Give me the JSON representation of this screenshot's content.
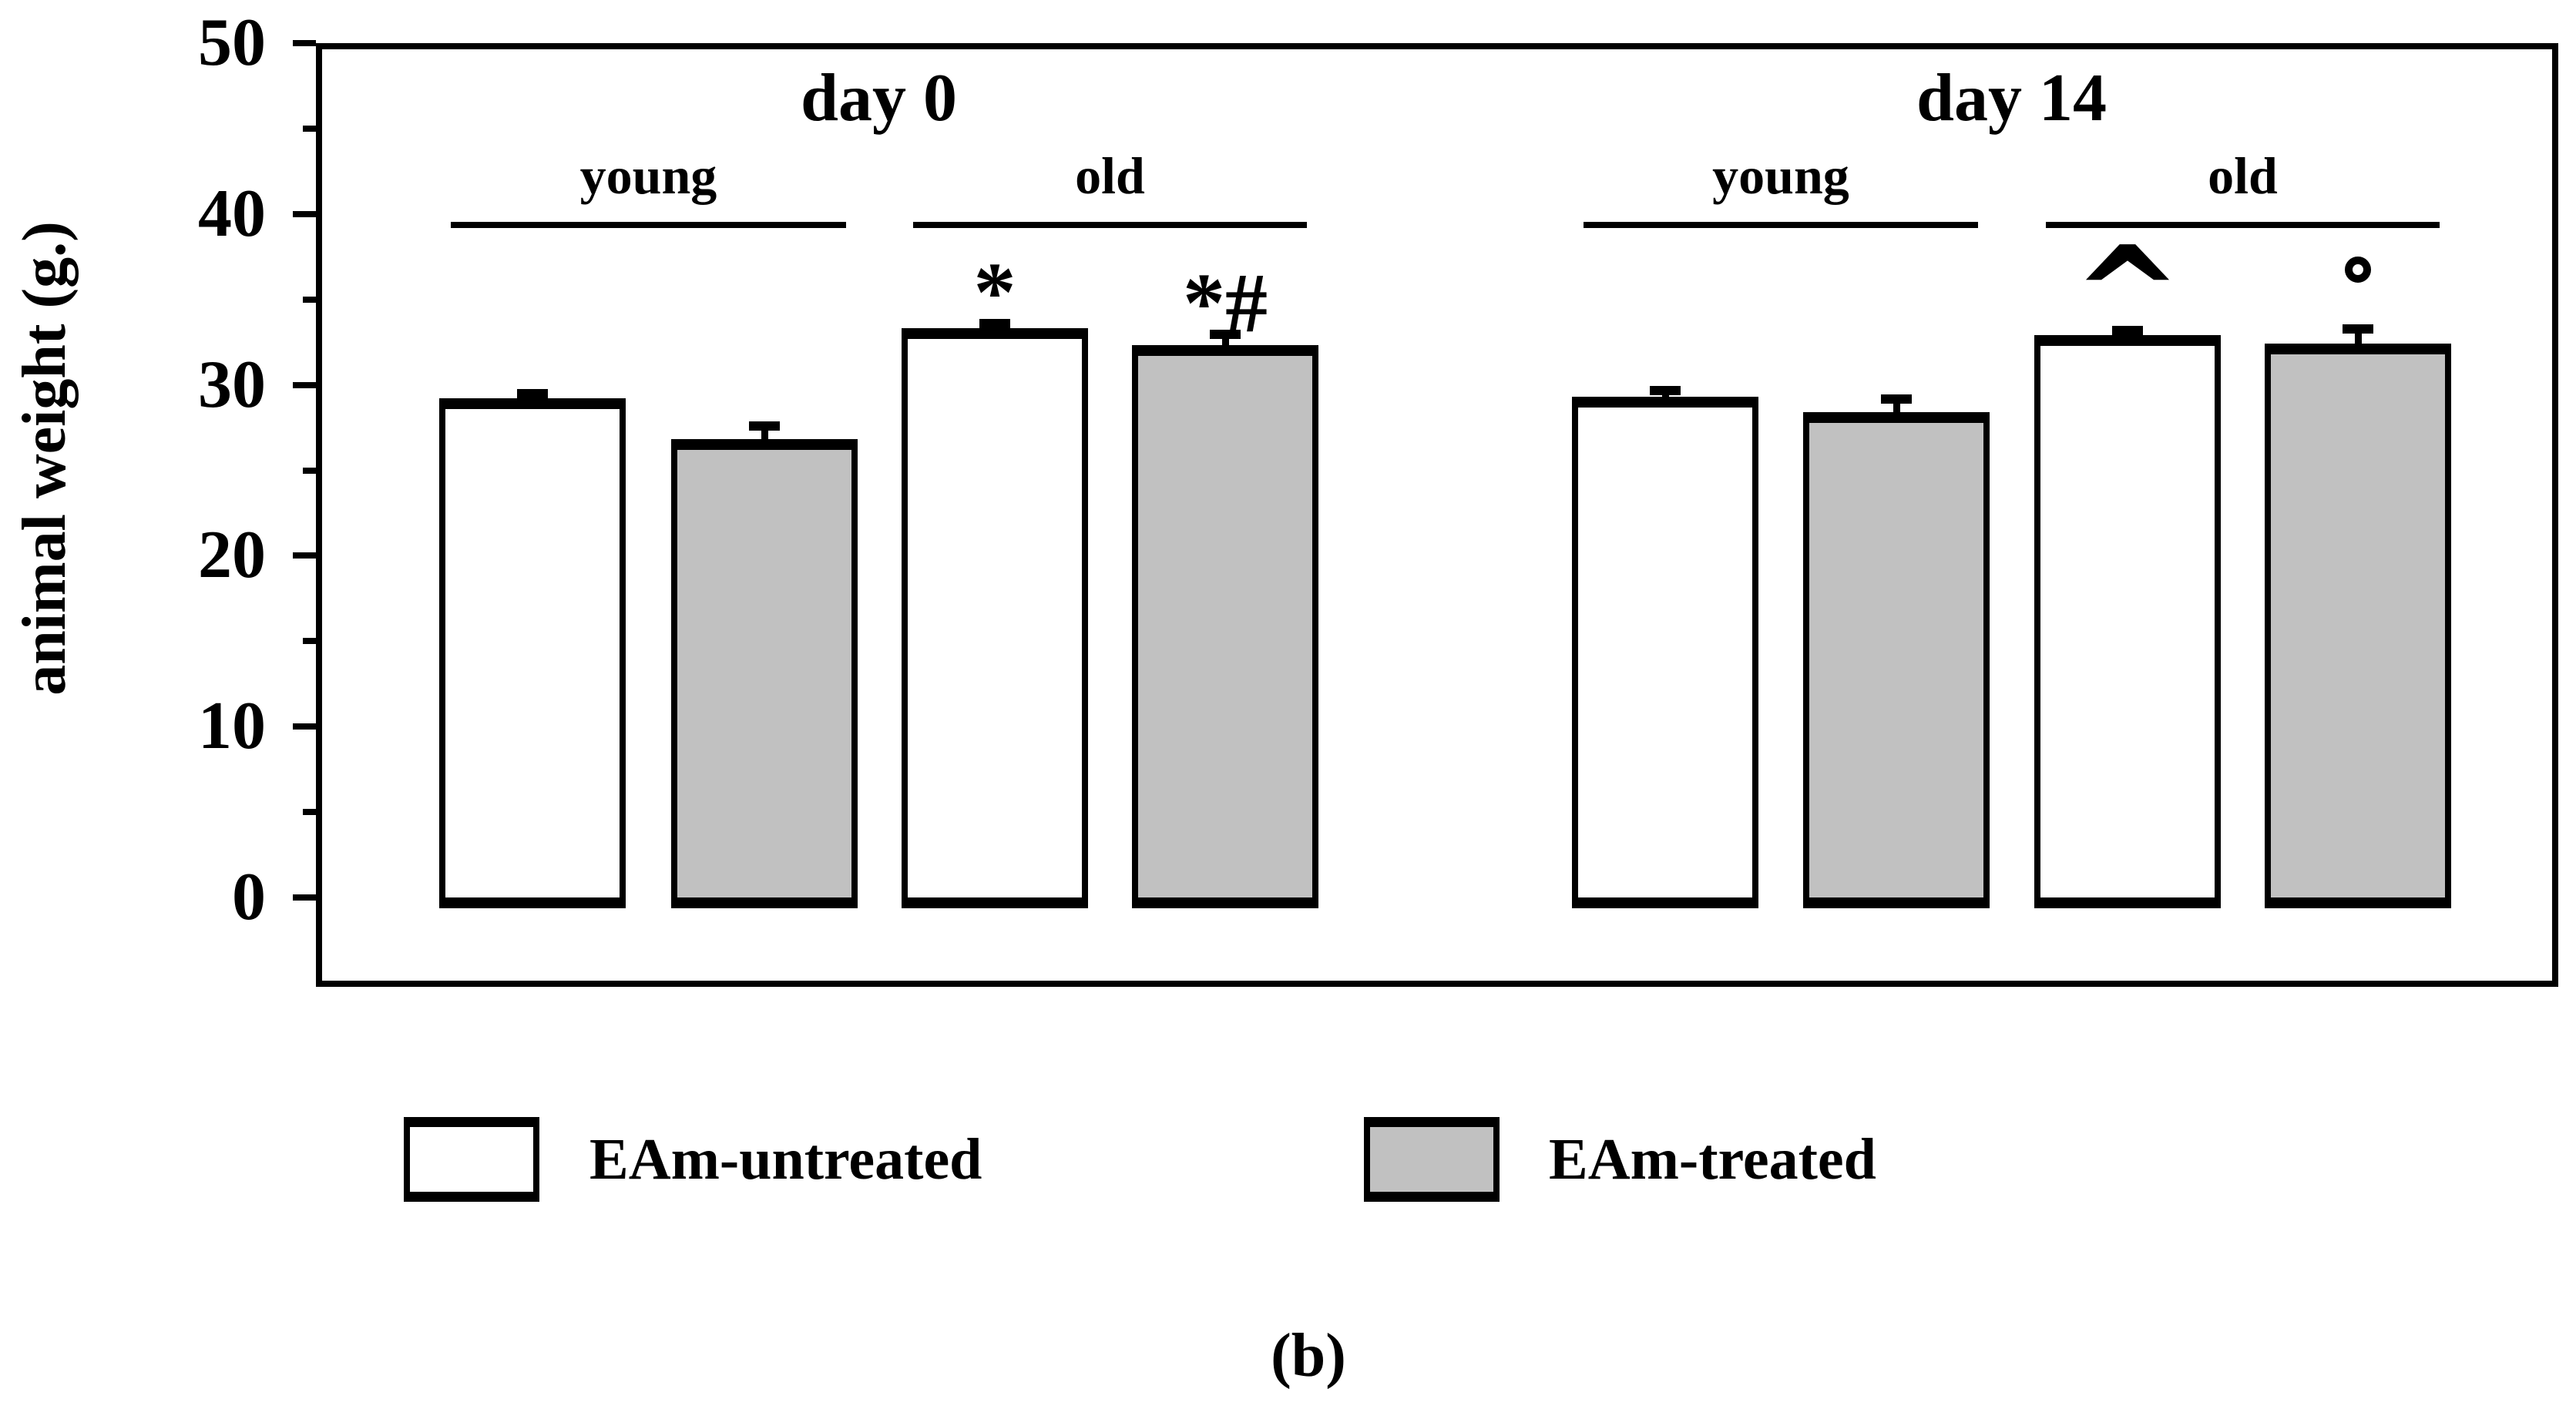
{
  "figure": {
    "caption": "(b)",
    "background": "#ffffff"
  },
  "chart_data": {
    "type": "bar",
    "title": "",
    "xlabel": "",
    "ylabel": "animal weight (g.)",
    "ylim": [
      0,
      50
    ],
    "yticks": [
      0,
      10,
      20,
      30,
      40,
      50
    ],
    "minor_yticks": [
      5,
      15,
      25,
      35,
      45
    ],
    "grid": false,
    "error_bars": "upper SEM with cap",
    "legend_position": "below chart",
    "colors": {
      "outline": "#000000",
      "untreated_fill": "#ffffff",
      "treated_fill": "#c1c1c1"
    },
    "groups": [
      {
        "label": "day 0",
        "subgroups": [
          {
            "label": "young"
          },
          {
            "label": "old"
          }
        ]
      },
      {
        "label": "day 14",
        "subgroups": [
          {
            "label": "young"
          },
          {
            "label": "old"
          }
        ]
      }
    ],
    "series": [
      {
        "name": "EAm-untreated",
        "fill": "#ffffff",
        "values": [
          28.9,
          33.0,
          29.0,
          32.6
        ]
      },
      {
        "name": "EAm-treated",
        "fill": "#c1c1c1",
        "values": [
          26.5,
          32.0,
          28.1,
          32.1
        ]
      }
    ],
    "bars": [
      {
        "group": "day 0",
        "subgroup": "young",
        "series": "EAm-untreated",
        "fill": "#ffffff",
        "value": 28.9,
        "sem": 0.3,
        "annotation": ""
      },
      {
        "group": "day 0",
        "subgroup": "young",
        "series": "EAm-treated",
        "fill": "#c1c1c1",
        "value": 26.5,
        "sem": 0.8,
        "annotation": ""
      },
      {
        "group": "day 0",
        "subgroup": "old",
        "series": "EAm-untreated",
        "fill": "#ffffff",
        "value": 33.0,
        "sem": 0.3,
        "annotation": "*"
      },
      {
        "group": "day 0",
        "subgroup": "old",
        "series": "EAm-treated",
        "fill": "#c1c1c1",
        "value": 32.0,
        "sem": 0.7,
        "annotation": "*#"
      },
      {
        "group": "day 14",
        "subgroup": "young",
        "series": "EAm-untreated",
        "fill": "#ffffff",
        "value": 29.0,
        "sem": 0.4,
        "annotation": ""
      },
      {
        "group": "day 14",
        "subgroup": "young",
        "series": "EAm-treated",
        "fill": "#c1c1c1",
        "value": 28.1,
        "sem": 0.8,
        "annotation": ""
      },
      {
        "group": "day 14",
        "subgroup": "old",
        "series": "EAm-untreated",
        "fill": "#ffffff",
        "value": 32.6,
        "sem": 0.3,
        "annotation": "^"
      },
      {
        "group": "day 14",
        "subgroup": "old",
        "series": "EAm-treated",
        "fill": "#c1c1c1",
        "value": 32.1,
        "sem": 0.9,
        "annotation": "°"
      }
    ]
  }
}
